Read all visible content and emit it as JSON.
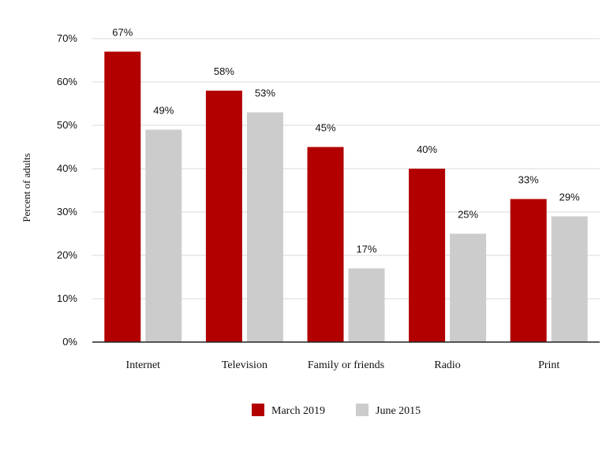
{
  "chart_data": {
    "type": "bar",
    "title": "",
    "xlabel": "",
    "ylabel": "Percent of adults",
    "ylim": [
      0,
      70
    ],
    "yticks": [
      0,
      10,
      20,
      30,
      40,
      50,
      60,
      70
    ],
    "ytick_suffix": "%",
    "grid": true,
    "legend_position": "bottom",
    "categories": [
      "Internet",
      "Television",
      "Family or friends",
      "Radio",
      "Print"
    ],
    "series": [
      {
        "name": "March 2019",
        "color": "#b20000",
        "values": [
          67,
          58,
          45,
          40,
          33
        ]
      },
      {
        "name": "June 2015",
        "color": "#cccccc",
        "values": [
          49,
          53,
          17,
          25,
          29
        ]
      }
    ]
  }
}
